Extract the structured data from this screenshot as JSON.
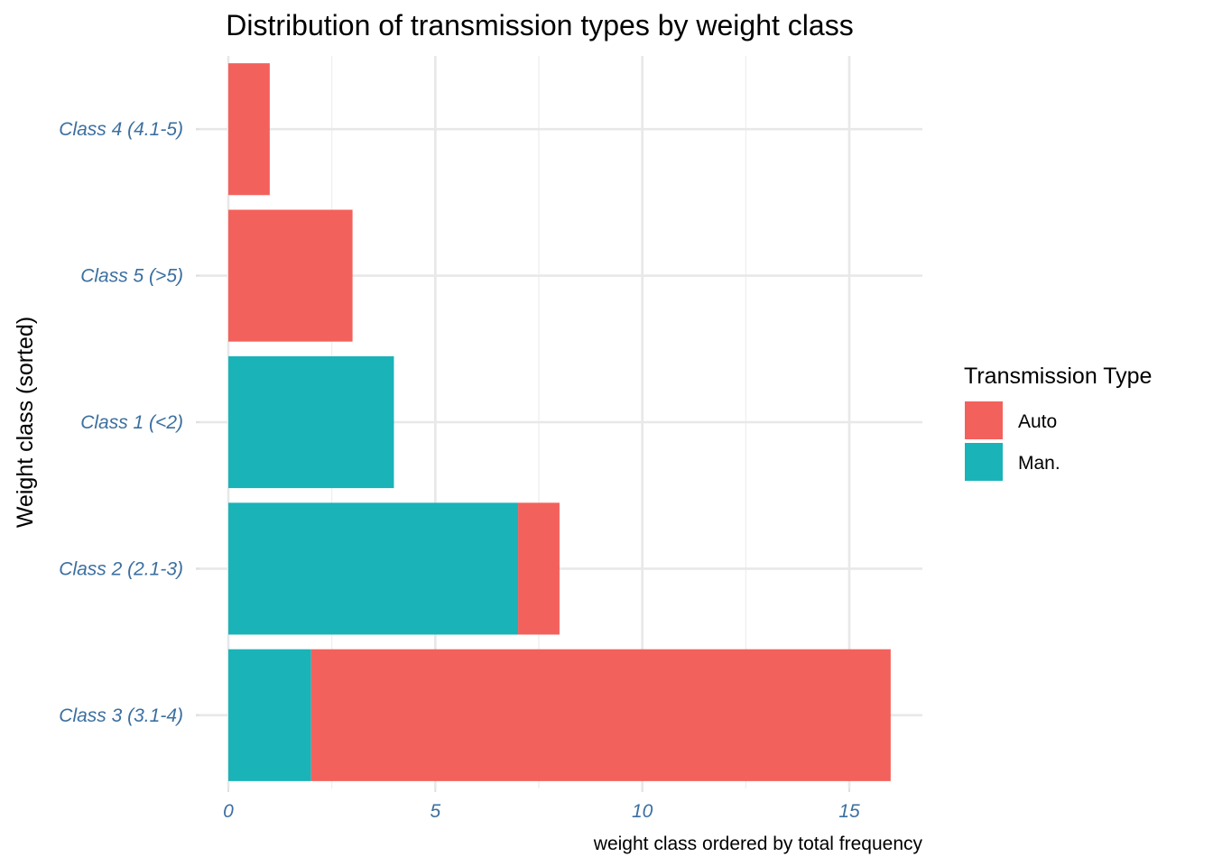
{
  "chart_data": {
    "type": "bar",
    "orientation": "horizontal",
    "stacked": true,
    "title": "Distribution of transmission types by weight class",
    "xlabel": "weight class ordered by total frequency",
    "ylabel": "Weight class (sorted)",
    "categories": [
      "Class 3 (3.1-4)",
      "Class 2 (2.1-3)",
      "Class 1 (<2)",
      "Class 5 (>5)",
      "Class 4 (4.1-5)"
    ],
    "series": [
      {
        "name": "Man.",
        "color": "#1ab3b8",
        "values": [
          2,
          7,
          4,
          0,
          0
        ]
      },
      {
        "name": "Auto",
        "color": "#f3615c",
        "values": [
          14,
          1,
          0,
          3,
          1
        ]
      }
    ],
    "x_ticks": [
      "0",
      "5",
      "10",
      "15"
    ],
    "xlim": [
      -0.2,
      16.8
    ],
    "grid": true,
    "legend": {
      "title": "Transmission Type",
      "position": "right",
      "items": [
        {
          "label": "Auto",
          "color": "#f3615c"
        },
        {
          "label": "Man.",
          "color": "#1ab3b8"
        }
      ]
    }
  }
}
